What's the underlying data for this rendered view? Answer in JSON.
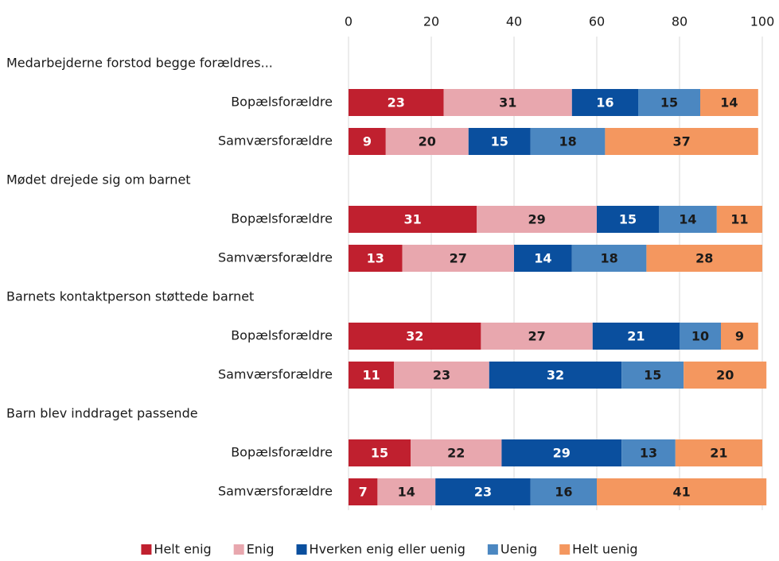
{
  "chart_data": {
    "type": "stacked_bar_horizontal",
    "categories": [
      "Medarbejderne forstod begge forældres...",
      "Bopælsforældre",
      "Samværsforældre",
      "Mødet drejede sig om barnet",
      "Bopælsforældre",
      "Samværsforældre",
      "Barnets kontaktperson støttede barnet",
      "Bopælsforældre",
      "Samværsforældre",
      "Barn blev inddraget passende",
      "Bopælsforældre",
      "Samværsforældre"
    ],
    "series": [
      {
        "name": "Helt enig",
        "color": "#c0202f",
        "label_color": "#ffffff",
        "values": [
          null,
          23,
          9,
          null,
          31,
          13,
          null,
          32,
          11,
          null,
          15,
          7
        ]
      },
      {
        "name": "Enig",
        "color": "#e8a7ae",
        "label_color": "#1a1a1a",
        "values": [
          null,
          31,
          20,
          null,
          29,
          27,
          null,
          27,
          23,
          null,
          22,
          14
        ]
      },
      {
        "name": "Hverken enig eller uenig",
        "color": "#0a4f9e",
        "label_color": "#ffffff",
        "values": [
          null,
          16,
          15,
          null,
          15,
          14,
          null,
          21,
          32,
          null,
          29,
          23
        ]
      },
      {
        "name": "Uenig",
        "color": "#4b87c1",
        "label_color": "#1a1a1a",
        "values": [
          null,
          15,
          18,
          null,
          14,
          18,
          null,
          10,
          15,
          null,
          13,
          16
        ]
      },
      {
        "name": "Helt uenig",
        "color": "#f4975f",
        "label_color": "#1a1a1a",
        "values": [
          null,
          14,
          37,
          null,
          11,
          28,
          null,
          9,
          20,
          null,
          21,
          41
        ]
      }
    ],
    "xlim": [
      0,
      100
    ],
    "xticks": [
      0,
      20,
      40,
      60,
      80,
      100
    ],
    "grid": true,
    "legend": "bottom"
  }
}
